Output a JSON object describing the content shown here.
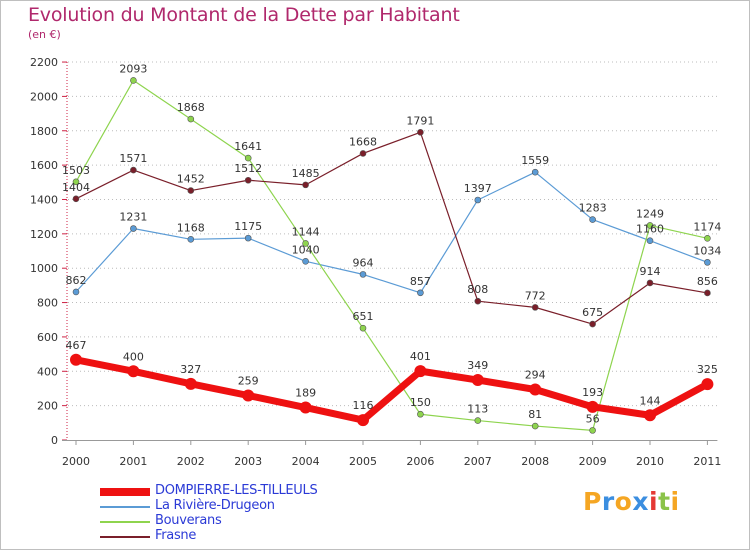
{
  "title": "Evolution du Montant de la Dette par Habitant",
  "unit": "(en €)",
  "logo": {
    "letters": [
      "P",
      "r",
      "o",
      "x",
      "i",
      "t",
      "i"
    ],
    "colors": [
      "#f5a623",
      "#3b8ee0",
      "#f5a623",
      "#3b8ee0",
      "#e53935",
      "#8bc34a",
      "#f5a623"
    ]
  },
  "chart_data": {
    "type": "line",
    "title": "Evolution du Montant de la Dette par Habitant",
    "ylabel": "(en €)",
    "xlabel": "",
    "x": [
      "2000",
      "2001",
      "2002",
      "2003",
      "2004",
      "2005",
      "2006",
      "2007",
      "2008",
      "2009",
      "2010",
      "2011"
    ],
    "ylim": [
      0,
      2200
    ],
    "yticks": [
      0,
      200,
      400,
      600,
      800,
      1000,
      1200,
      1400,
      1600,
      1800,
      2000,
      2200
    ],
    "grid": "horizontal-dotted",
    "legend_position": "bottom-left",
    "series": [
      {
        "name": "DOMPIERRE-LES-TILLEULS",
        "color": "#ee1111",
        "width": 7,
        "values": [
          467,
          400,
          327,
          259,
          189,
          116,
          401,
          349,
          294,
          193,
          144,
          325
        ]
      },
      {
        "name": "La Rivière-Drugeon",
        "color": "#5b9bd5",
        "width": 1.2,
        "values": [
          862,
          1231,
          1168,
          1175,
          1040,
          964,
          857,
          1397,
          1559,
          1283,
          1160,
          1034
        ]
      },
      {
        "name": "Bouverans",
        "color": "#8ed44e",
        "width": 1.2,
        "values": [
          1503,
          2093,
          1868,
          1641,
          1144,
          651,
          150,
          113,
          81,
          56,
          1249,
          1174
        ]
      },
      {
        "name": "Frasne",
        "color": "#7a1f2a",
        "width": 1.2,
        "values": [
          1404,
          1571,
          1452,
          1512,
          1485,
          1668,
          1791,
          808,
          772,
          675,
          914,
          856
        ]
      }
    ]
  }
}
